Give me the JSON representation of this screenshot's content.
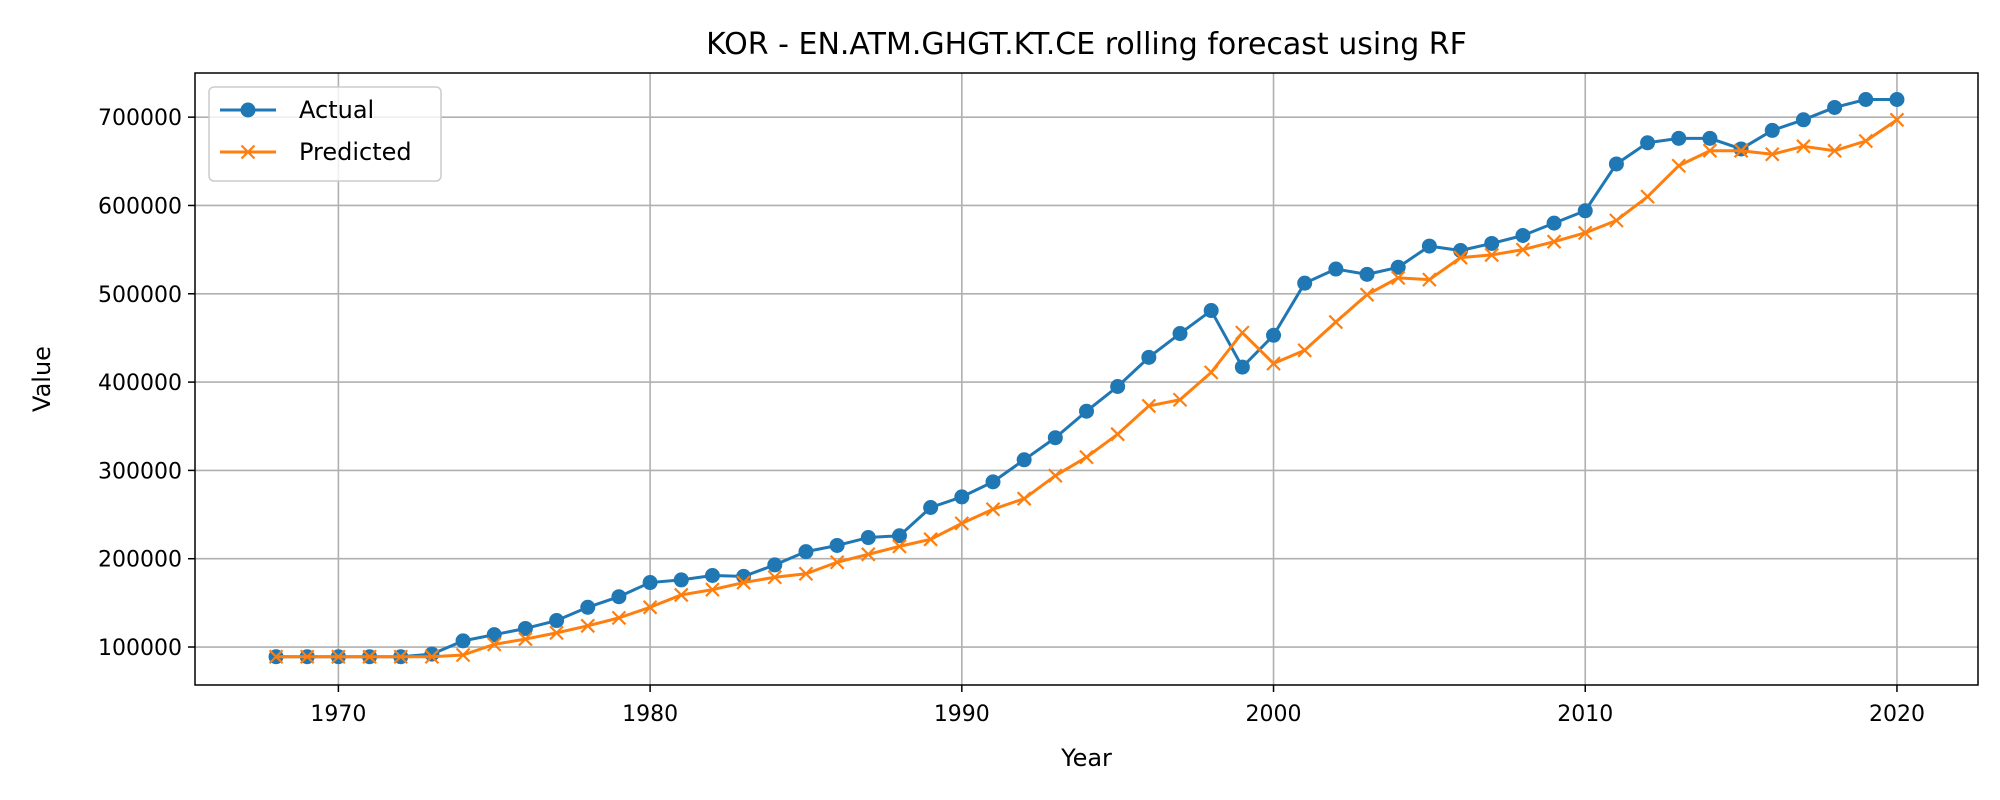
{
  "chart_data": {
    "type": "line",
    "title": "KOR - EN.ATM.GHGT.KT.CE rolling forecast using RF",
    "xlabel": "Year",
    "ylabel": "Value",
    "xlim": [
      1965.4,
      2022.6
    ],
    "ylim": [
      57000,
      750000
    ],
    "xticks": [
      1970,
      1980,
      1990,
      2000,
      2010,
      2020
    ],
    "yticks": [
      100000,
      200000,
      300000,
      400000,
      500000,
      600000,
      700000
    ],
    "grid": true,
    "legend_position": "top-left",
    "x": [
      1968,
      1969,
      1970,
      1971,
      1972,
      1973,
      1974,
      1975,
      1976,
      1977,
      1978,
      1979,
      1980,
      1981,
      1982,
      1983,
      1984,
      1985,
      1986,
      1987,
      1988,
      1989,
      1990,
      1991,
      1992,
      1993,
      1994,
      1995,
      1996,
      1997,
      1998,
      1999,
      2000,
      2001,
      2002,
      2003,
      2004,
      2005,
      2006,
      2007,
      2008,
      2009,
      2010,
      2011,
      2012,
      2013,
      2014,
      2015,
      2016,
      2017,
      2018,
      2019,
      2020
    ],
    "series": [
      {
        "name": "Actual",
        "color": "#1f77b4",
        "marker": "circle",
        "values": [
          89000,
          89000,
          89000,
          89000,
          89000,
          92000,
          107000,
          114000,
          121000,
          130000,
          145000,
          157000,
          173000,
          176000,
          181000,
          180000,
          193000,
          208000,
          215000,
          224000,
          226000,
          258000,
          270000,
          287000,
          312000,
          337000,
          367000,
          395000,
          428000,
          455000,
          481000,
          417000,
          453000,
          512000,
          528000,
          522000,
          530000,
          554000,
          549000,
          557000,
          566000,
          580000,
          594000,
          647000,
          671000,
          676000,
          676000,
          664000,
          685000,
          697000,
          711000,
          720000,
          720000
        ]
      },
      {
        "name": "Predicted",
        "color": "#ff7f0e",
        "marker": "x",
        "values": [
          89000,
          89000,
          89000,
          89000,
          89000,
          89000,
          91000,
          103000,
          109000,
          116000,
          124000,
          133000,
          145000,
          159000,
          165000,
          173000,
          179000,
          183000,
          196000,
          205000,
          214000,
          222000,
          240000,
          256000,
          268000,
          294000,
          315000,
          341000,
          373000,
          380000,
          411000,
          456000,
          421000,
          436000,
          468000,
          499000,
          518000,
          516000,
          541000,
          544000,
          550000,
          559000,
          569000,
          583000,
          610000,
          645000,
          662000,
          662000,
          658000,
          667000,
          662000,
          673000,
          697000
        ]
      }
    ]
  }
}
